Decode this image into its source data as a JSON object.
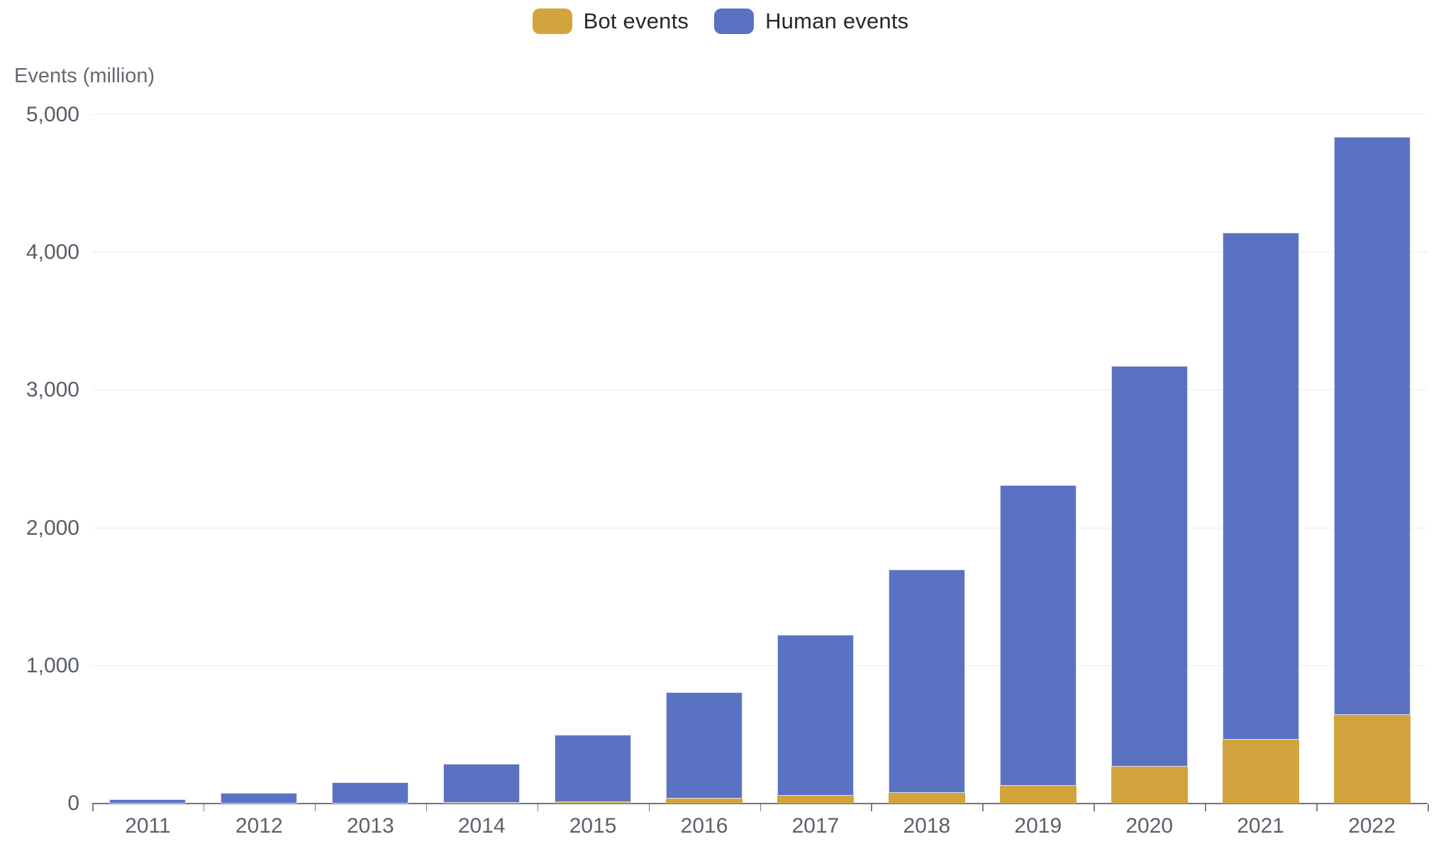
{
  "legend": [
    {
      "label": "Bot events",
      "color": "#d2a43e"
    },
    {
      "label": "Human events",
      "color": "#5b72c2"
    }
  ],
  "chart_data": {
    "type": "bar",
    "stacked": true,
    "title": "",
    "ylabel": "Events (million)",
    "xlabel": "",
    "categories": [
      "2011",
      "2012",
      "2013",
      "2014",
      "2015",
      "2016",
      "2017",
      "2018",
      "2019",
      "2020",
      "2021",
      "2022"
    ],
    "series": [
      {
        "name": "Bot events",
        "color": "#d2a43e",
        "values": [
          0,
          0,
          0,
          5,
          12,
          35,
          57,
          80,
          130,
          270,
          465,
          642
        ]
      },
      {
        "name": "Human events",
        "color": "#5b72c2",
        "values": [
          30,
          78,
          155,
          285,
          488,
          775,
          1170,
          1620,
          2185,
          2910,
          3680,
          4198
        ]
      }
    ],
    "totals": [
      30,
      78,
      155,
      290,
      500,
      810,
      1227,
      1700,
      2315,
      3180,
      4145,
      4840
    ],
    "ylim": [
      0,
      5000
    ],
    "yticks": [
      0,
      1000,
      2000,
      3000,
      4000,
      5000
    ],
    "ytick_labels": [
      "0",
      "1,000",
      "2,000",
      "3,000",
      "4,000",
      "5,000"
    ],
    "grid": true,
    "legend_position": "top-center"
  },
  "colors": {
    "background": "#ffffff",
    "gridline": "#e8ecf6",
    "axis_line": "#707478",
    "tick_mark": "#7c8087",
    "axis_label": "#565d66",
    "year_label": "#5b6169",
    "axis_title": "#636a73",
    "legend_text": "#25282c",
    "bot_bar": "#d2a43e",
    "human_bar": "#5b72c2"
  }
}
